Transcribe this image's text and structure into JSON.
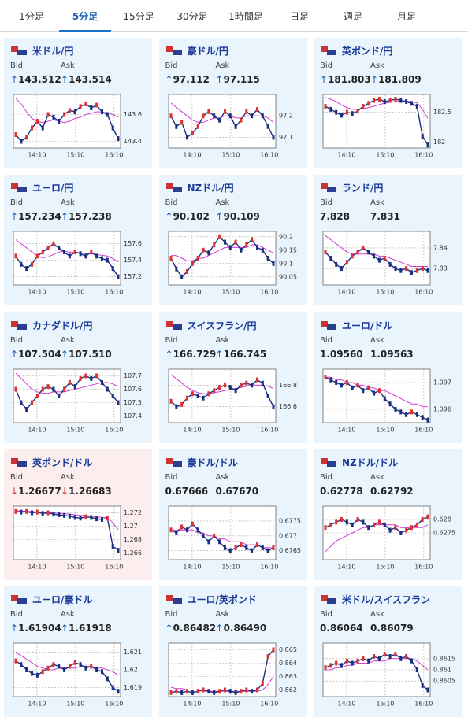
{
  "tabs": [
    {
      "label": "1分足"
    },
    {
      "label": "5分足",
      "active": true
    },
    {
      "label": "15分足"
    },
    {
      "label": "30分足"
    },
    {
      "label": "1時間足"
    },
    {
      "label": "日足"
    },
    {
      "label": "週足"
    },
    {
      "label": "月足"
    }
  ],
  "labels": {
    "bid": "Bid",
    "ask": "Ask"
  },
  "xticks": [
    "14:10",
    "15:10",
    "16:10"
  ],
  "cards": [
    {
      "title": "米ドル/円",
      "bid_arrow": "↑",
      "bid": "143.512",
      "ask_arrow": "↑",
      "ask": "143.514",
      "ylim": [
        143.35,
        143.75
      ],
      "yticks": [
        143.4,
        143.6
      ],
      "close": [
        143.45,
        143.4,
        143.43,
        143.5,
        143.55,
        143.5,
        143.6,
        143.58,
        143.55,
        143.6,
        143.63,
        143.62,
        143.66,
        143.68,
        143.65,
        143.67,
        143.62,
        143.6,
        143.5,
        143.42
      ],
      "ma": [
        143.72,
        143.68,
        143.62,
        143.57,
        143.55,
        143.54,
        143.55,
        143.56,
        143.55,
        143.54,
        143.55,
        143.57,
        143.58,
        143.6,
        143.61,
        143.62,
        143.62,
        143.61,
        143.6,
        143.58
      ]
    },
    {
      "title": "豪ドル/円",
      "bid_arrow": "↑",
      "bid": "97.112",
      "ask_arrow": "↑",
      "ask": "97.115",
      "ylim": [
        97.05,
        97.3
      ],
      "yticks": [
        97.1,
        97.2
      ],
      "close": [
        97.2,
        97.15,
        97.17,
        97.1,
        97.12,
        97.15,
        97.2,
        97.22,
        97.2,
        97.18,
        97.22,
        97.2,
        97.15,
        97.18,
        97.22,
        97.2,
        97.23,
        97.2,
        97.15,
        97.1
      ],
      "ma": [
        97.26,
        97.24,
        97.22,
        97.2,
        97.18,
        97.17,
        97.17,
        97.18,
        97.19,
        97.19,
        97.2,
        97.2,
        97.19,
        97.19,
        97.2,
        97.2,
        97.2,
        97.2,
        97.19,
        97.17
      ]
    },
    {
      "title": "英ポンド/円",
      "bid_arrow": "↑",
      "bid": "181.803",
      "ask_arrow": "↑",
      "ask": "181.809",
      "ylim": [
        181.9,
        182.8
      ],
      "yticks": [
        182,
        182.5
      ],
      "close": [
        182.6,
        182.55,
        182.5,
        182.45,
        182.5,
        182.48,
        182.52,
        182.6,
        182.65,
        182.7,
        182.72,
        182.68,
        182.7,
        182.72,
        182.7,
        182.68,
        182.65,
        182.6,
        182.1,
        181.95
      ],
      "ma": [
        182.75,
        182.72,
        182.68,
        182.62,
        182.58,
        182.55,
        182.55,
        182.56,
        182.58,
        182.6,
        182.63,
        182.65,
        182.67,
        182.68,
        182.69,
        182.69,
        182.68,
        182.66,
        182.55,
        182.4
      ]
    },
    {
      "title": "ユーロ/円",
      "bid_arrow": "↑",
      "bid": "157.234",
      "ask_arrow": "↑",
      "ask": "157.238",
      "ylim": [
        157.1,
        157.75
      ],
      "yticks": [
        157.2,
        157.4,
        157.6
      ],
      "close": [
        157.45,
        157.35,
        157.3,
        157.35,
        157.45,
        157.5,
        157.55,
        157.6,
        157.55,
        157.5,
        157.45,
        157.5,
        157.48,
        157.45,
        157.5,
        157.45,
        157.42,
        157.4,
        157.3,
        157.2
      ],
      "ma": [
        157.65,
        157.6,
        157.55,
        157.5,
        157.45,
        157.43,
        157.44,
        157.47,
        157.5,
        157.51,
        157.5,
        157.5,
        157.49,
        157.48,
        157.48,
        157.47,
        157.46,
        157.45,
        157.42,
        157.38
      ]
    },
    {
      "title": "NZドル/円",
      "bid_arrow": "↑",
      "bid": "90.102",
      "ask_arrow": "↑",
      "ask": "90.109",
      "ylim": [
        90.02,
        90.22
      ],
      "yticks": [
        90.05,
        90.1,
        90.15,
        90.2
      ],
      "close": [
        90.12,
        90.08,
        90.05,
        90.07,
        90.1,
        90.12,
        90.15,
        90.14,
        90.17,
        90.2,
        90.18,
        90.16,
        90.18,
        90.15,
        90.17,
        90.19,
        90.16,
        90.15,
        90.12,
        90.1
      ],
      "ma": [
        90.13,
        90.13,
        90.12,
        90.11,
        90.11,
        90.12,
        90.12,
        90.13,
        90.14,
        90.15,
        90.16,
        90.16,
        90.16,
        90.16,
        90.16,
        90.17,
        90.17,
        90.16,
        90.15,
        90.14
      ]
    },
    {
      "title": "ランド/円",
      "bid": "7.828",
      "ask": "7.831",
      "ylim": [
        7.822,
        7.848
      ],
      "yticks": [
        7.83,
        7.84
      ],
      "close": [
        7.838,
        7.835,
        7.832,
        7.83,
        7.833,
        7.836,
        7.838,
        7.84,
        7.838,
        7.836,
        7.834,
        7.835,
        7.832,
        7.83,
        7.829,
        7.83,
        7.828,
        7.829,
        7.83,
        7.829
      ],
      "ma": [
        7.846,
        7.844,
        7.842,
        7.84,
        7.838,
        7.837,
        7.837,
        7.837,
        7.837,
        7.837,
        7.836,
        7.836,
        7.835,
        7.834,
        7.833,
        7.832,
        7.831,
        7.831,
        7.831,
        7.831
      ]
    },
    {
      "title": "カナダドル/円",
      "bid_arrow": "↑",
      "bid": "107.504",
      "ask_arrow": "↑",
      "ask": "107.510",
      "ylim": [
        107.35,
        107.75
      ],
      "yticks": [
        107.4,
        107.5,
        107.6,
        107.7
      ],
      "close": [
        107.6,
        107.5,
        107.45,
        107.5,
        107.55,
        107.6,
        107.62,
        107.6,
        107.55,
        107.6,
        107.65,
        107.62,
        107.68,
        107.7,
        107.68,
        107.7,
        107.65,
        107.6,
        107.55,
        107.5
      ],
      "ma": [
        107.72,
        107.68,
        107.64,
        107.6,
        107.58,
        107.57,
        107.57,
        107.58,
        107.58,
        107.58,
        107.59,
        107.6,
        107.61,
        107.62,
        107.63,
        107.64,
        107.65,
        107.65,
        107.64,
        107.62
      ]
    },
    {
      "title": "スイスフラン/円",
      "bid_arrow": "↑",
      "bid": "166.729",
      "ask_arrow": "↑",
      "ask": "166.745",
      "ylim": [
        166.45,
        166.95
      ],
      "yticks": [
        166.6,
        166.8
      ],
      "close": [
        166.65,
        166.6,
        166.62,
        166.68,
        166.72,
        166.7,
        166.68,
        166.72,
        166.75,
        166.78,
        166.8,
        166.78,
        166.75,
        166.8,
        166.82,
        166.8,
        166.85,
        166.82,
        166.7,
        166.6
      ],
      "ma": [
        166.9,
        166.86,
        166.82,
        166.78,
        166.75,
        166.73,
        166.72,
        166.72,
        166.73,
        166.74,
        166.75,
        166.76,
        166.77,
        166.78,
        166.79,
        166.8,
        166.8,
        166.8,
        166.79,
        166.77
      ]
    },
    {
      "title": "ユーロ/ドル",
      "bid": "1.09560",
      "ask": "1.09563",
      "ylim": [
        1.0955,
        1.0975
      ],
      "yticks": [
        1.096,
        1.097
      ],
      "close": [
        1.0972,
        1.0971,
        1.097,
        1.0969,
        1.097,
        1.0968,
        1.0969,
        1.0967,
        1.0968,
        1.0966,
        1.0967,
        1.0964,
        1.0962,
        1.096,
        1.0959,
        1.0958,
        1.0959,
        1.0958,
        1.0957,
        1.0956
      ],
      "ma": [
        1.0972,
        1.0972,
        1.0971,
        1.0971,
        1.097,
        1.097,
        1.0969,
        1.0969,
        1.0968,
        1.0968,
        1.0967,
        1.0967,
        1.0966,
        1.0965,
        1.0964,
        1.0963,
        1.0962,
        1.0962,
        1.0961,
        1.0961
      ]
    },
    {
      "title": "英ポンド/ドル",
      "highlight": true,
      "bid_arrow": "↓",
      "bid": "1.26677",
      "ask_arrow": "↓",
      "ask": "1.26683",
      "ylim": [
        1.265,
        1.273
      ],
      "yticks": [
        1.266,
        1.268,
        1.27,
        1.272
      ],
      "close": [
        1.2722,
        1.2721,
        1.2722,
        1.272,
        1.2721,
        1.2719,
        1.272,
        1.2718,
        1.2717,
        1.2716,
        1.2715,
        1.2713,
        1.2712,
        1.2714,
        1.2713,
        1.2711,
        1.271,
        1.2712,
        1.267,
        1.2664
      ],
      "ma": [
        1.2723,
        1.2723,
        1.2722,
        1.2722,
        1.2721,
        1.2721,
        1.272,
        1.272,
        1.2719,
        1.2719,
        1.2718,
        1.2717,
        1.2716,
        1.2716,
        1.2715,
        1.2714,
        1.2713,
        1.2713,
        1.2705,
        1.2695
      ]
    },
    {
      "title": "豪ドル/ドル",
      "bid": "0.67666",
      "ask": "0.67670",
      "ylim": [
        0.6762,
        0.678
      ],
      "yticks": [
        0.6765,
        0.677,
        0.6775
      ],
      "close": [
        0.6772,
        0.6771,
        0.6773,
        0.6772,
        0.6774,
        0.6772,
        0.677,
        0.6768,
        0.677,
        0.6768,
        0.6766,
        0.6765,
        0.6766,
        0.6767,
        0.6766,
        0.6765,
        0.6767,
        0.6766,
        0.6765,
        0.6766
      ],
      "ma": [
        0.6772,
        0.6772,
        0.6772,
        0.6772,
        0.6772,
        0.6771,
        0.6771,
        0.677,
        0.677,
        0.6769,
        0.6769,
        0.6768,
        0.6768,
        0.6768,
        0.6767,
        0.6767,
        0.6767,
        0.6766,
        0.6766,
        0.6766
      ]
    },
    {
      "title": "NZドル/ドル",
      "bid": "0.62778",
      "ask": "0.62792",
      "ylim": [
        0.6265,
        0.6285
      ],
      "yticks": [
        0.6275,
        0.628
      ],
      "close": [
        0.6277,
        0.6278,
        0.6279,
        0.628,
        0.6279,
        0.6278,
        0.628,
        0.6279,
        0.6277,
        0.6278,
        0.6279,
        0.6278,
        0.6276,
        0.6277,
        0.6275,
        0.6276,
        0.6277,
        0.6278,
        0.628,
        0.6281
      ],
      "ma": [
        0.6268,
        0.627,
        0.6272,
        0.6273,
        0.6274,
        0.6275,
        0.6276,
        0.6277,
        0.6277,
        0.6278,
        0.6278,
        0.6278,
        0.6278,
        0.6278,
        0.6277,
        0.6277,
        0.6277,
        0.6277,
        0.6277,
        0.6278
      ]
    },
    {
      "title": "ユーロ/豪ドル",
      "bid_arrow": "↑",
      "bid": "1.61904",
      "ask_arrow": "↑",
      "ask": "1.61918",
      "ylim": [
        1.6185,
        1.6215
      ],
      "yticks": [
        1.619,
        1.62,
        1.621
      ],
      "close": [
        1.6205,
        1.6203,
        1.62,
        1.6198,
        1.6197,
        1.6199,
        1.6201,
        1.6203,
        1.6202,
        1.62,
        1.6202,
        1.6204,
        1.6203,
        1.6201,
        1.6202,
        1.62,
        1.6199,
        1.6195,
        1.619,
        1.6188
      ],
      "ma": [
        1.621,
        1.6208,
        1.6206,
        1.6204,
        1.6202,
        1.6201,
        1.62,
        1.62,
        1.6201,
        1.6201,
        1.6201,
        1.6201,
        1.6202,
        1.6202,
        1.6202,
        1.6201,
        1.6201,
        1.62,
        1.6199,
        1.6197
      ]
    },
    {
      "title": "ユーロ/英ポンド",
      "bid_arrow": "↑",
      "bid": "0.86482",
      "ask_arrow": "↑",
      "ask": "0.86490",
      "ylim": [
        0.8615,
        0.8655
      ],
      "yticks": [
        0.862,
        0.863,
        0.864,
        0.865
      ],
      "close": [
        0.8618,
        0.8619,
        0.8618,
        0.8619,
        0.8618,
        0.8619,
        0.862,
        0.8619,
        0.8618,
        0.8619,
        0.862,
        0.8619,
        0.8618,
        0.8619,
        0.862,
        0.8619,
        0.862,
        0.8625,
        0.8645,
        0.865
      ],
      "ma": [
        0.8622,
        0.8621,
        0.8621,
        0.862,
        0.862,
        0.862,
        0.8619,
        0.8619,
        0.8619,
        0.8619,
        0.8619,
        0.8619,
        0.8619,
        0.8619,
        0.8619,
        0.8619,
        0.8619,
        0.862,
        0.8624,
        0.863
      ]
    },
    {
      "title": "米ドル/スイスフラン",
      "bid": "0.86064",
      "ask": "0.86079",
      "ylim": [
        0.8598,
        0.8622
      ],
      "yticks": [
        0.8605,
        0.861,
        0.8615
      ],
      "close": [
        0.8611,
        0.8612,
        0.8613,
        0.8612,
        0.8614,
        0.8613,
        0.8614,
        0.8615,
        0.8614,
        0.8616,
        0.8615,
        0.8617,
        0.8616,
        0.8617,
        0.8615,
        0.8616,
        0.8614,
        0.861,
        0.8603,
        0.8601
      ],
      "ma": [
        0.861,
        0.861,
        0.8611,
        0.8611,
        0.8612,
        0.8612,
        0.8613,
        0.8613,
        0.8613,
        0.8614,
        0.8614,
        0.8614,
        0.8615,
        0.8615,
        0.8615,
        0.8615,
        0.8615,
        0.8614,
        0.8612,
        0.861
      ]
    }
  ]
}
